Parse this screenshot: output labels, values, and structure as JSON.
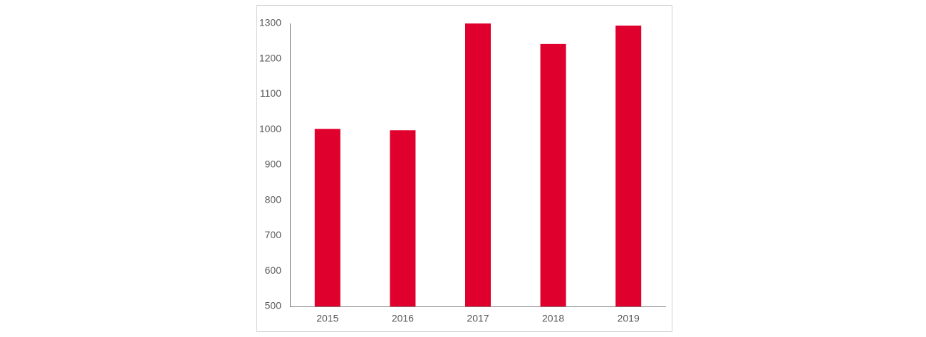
{
  "chart_data": {
    "type": "bar",
    "categories": [
      "2015",
      "2016",
      "2017",
      "2018",
      "2019"
    ],
    "values": [
      1002,
      998,
      1300,
      1242,
      1294
    ],
    "color": "#e0002d",
    "ylim": [
      500,
      1300
    ],
    "yticks": [
      500,
      600,
      700,
      800,
      900,
      1000,
      1100,
      1200,
      1300
    ],
    "grid": false
  }
}
